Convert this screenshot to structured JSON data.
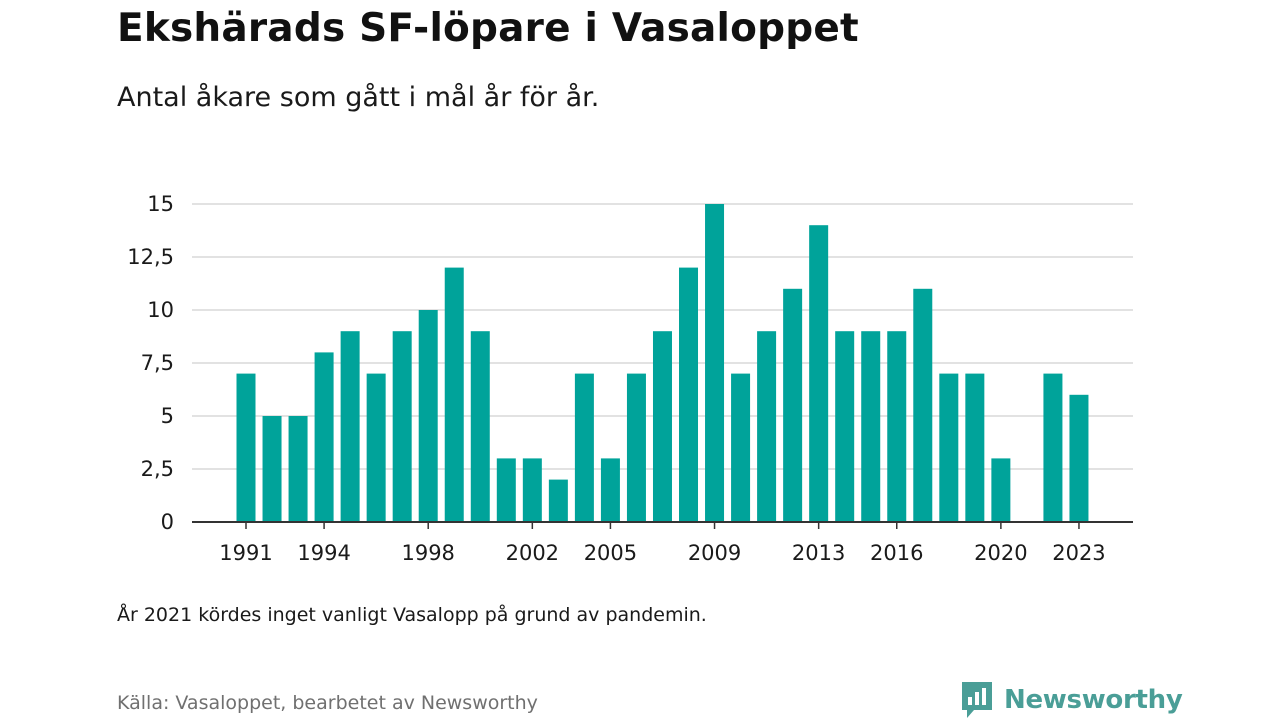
{
  "header": {
    "title": "Ekshärads SF-löpare i Vasaloppet",
    "subtitle": "Antal åkare som gått i mål år för år."
  },
  "footer": {
    "note": "År 2021 kördes inget vanligt Vasalopp på grund av pandemin.",
    "source": "Källa: Vasaloppet, bearbetet av Newsworthy",
    "logo_text": "Newsworthy"
  },
  "colors": {
    "bar": "#00a39a",
    "grid": "#d9d9d9",
    "axis": "#333333",
    "logo": "#4a9e97"
  },
  "chart_data": {
    "type": "bar",
    "title": "Ekshärads SF-löpare i Vasaloppet",
    "subtitle": "Antal åkare som gått i mål år för år.",
    "xlabel": "",
    "ylabel": "",
    "x": [
      1991,
      1992,
      1993,
      1994,
      1995,
      1996,
      1997,
      1998,
      1999,
      2000,
      2001,
      2002,
      2003,
      2004,
      2005,
      2006,
      2007,
      2008,
      2009,
      2010,
      2011,
      2012,
      2013,
      2014,
      2015,
      2016,
      2017,
      2018,
      2019,
      2020,
      2021,
      2022,
      2023
    ],
    "values": [
      7,
      5,
      5,
      8,
      9,
      7,
      9,
      10,
      12,
      9,
      3,
      3,
      2,
      7,
      3,
      7,
      9,
      12,
      15,
      7,
      9,
      11,
      14,
      9,
      9,
      9,
      11,
      7,
      7,
      3,
      null,
      7,
      6
    ],
    "x_tick_labels": [
      "1991",
      "1994",
      "1998",
      "2002",
      "2005",
      "2009",
      "2013",
      "2016",
      "2020",
      "2023"
    ],
    "y_ticks": [
      0,
      2.5,
      5,
      7.5,
      10,
      12.5,
      15
    ],
    "y_tick_labels": [
      "0",
      "2,5",
      "5",
      "7,5",
      "10",
      "12,5",
      "15"
    ],
    "ylim": [
      0,
      15
    ],
    "grid": true,
    "legend": "none"
  }
}
